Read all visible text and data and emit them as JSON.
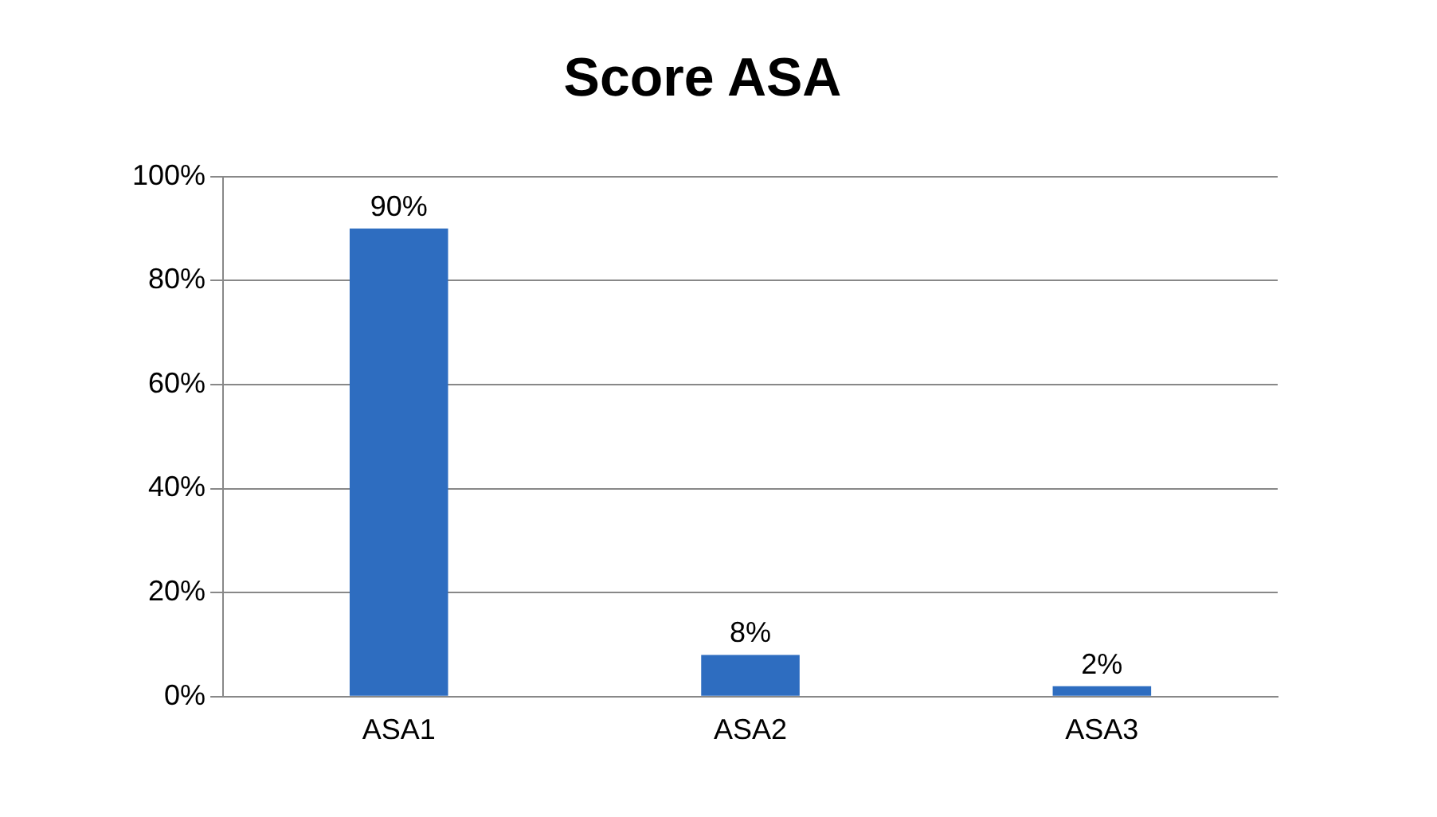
{
  "chart_data": {
    "type": "bar",
    "title": "Score ASA",
    "categories": [
      "ASA1",
      "ASA2",
      "ASA3"
    ],
    "values": [
      90,
      8,
      2
    ],
    "value_labels": [
      "90%",
      "8%",
      "2%"
    ],
    "color": "#2e6dc0",
    "ylim": [
      0,
      100
    ],
    "yticks": [
      {
        "value": 0,
        "label": "0%"
      },
      {
        "value": 20,
        "label": "20%"
      },
      {
        "value": 40,
        "label": "40%"
      },
      {
        "value": 60,
        "label": "60%"
      },
      {
        "value": 80,
        "label": "80%"
      },
      {
        "value": 100,
        "label": "100%"
      }
    ],
    "grid": "y"
  }
}
